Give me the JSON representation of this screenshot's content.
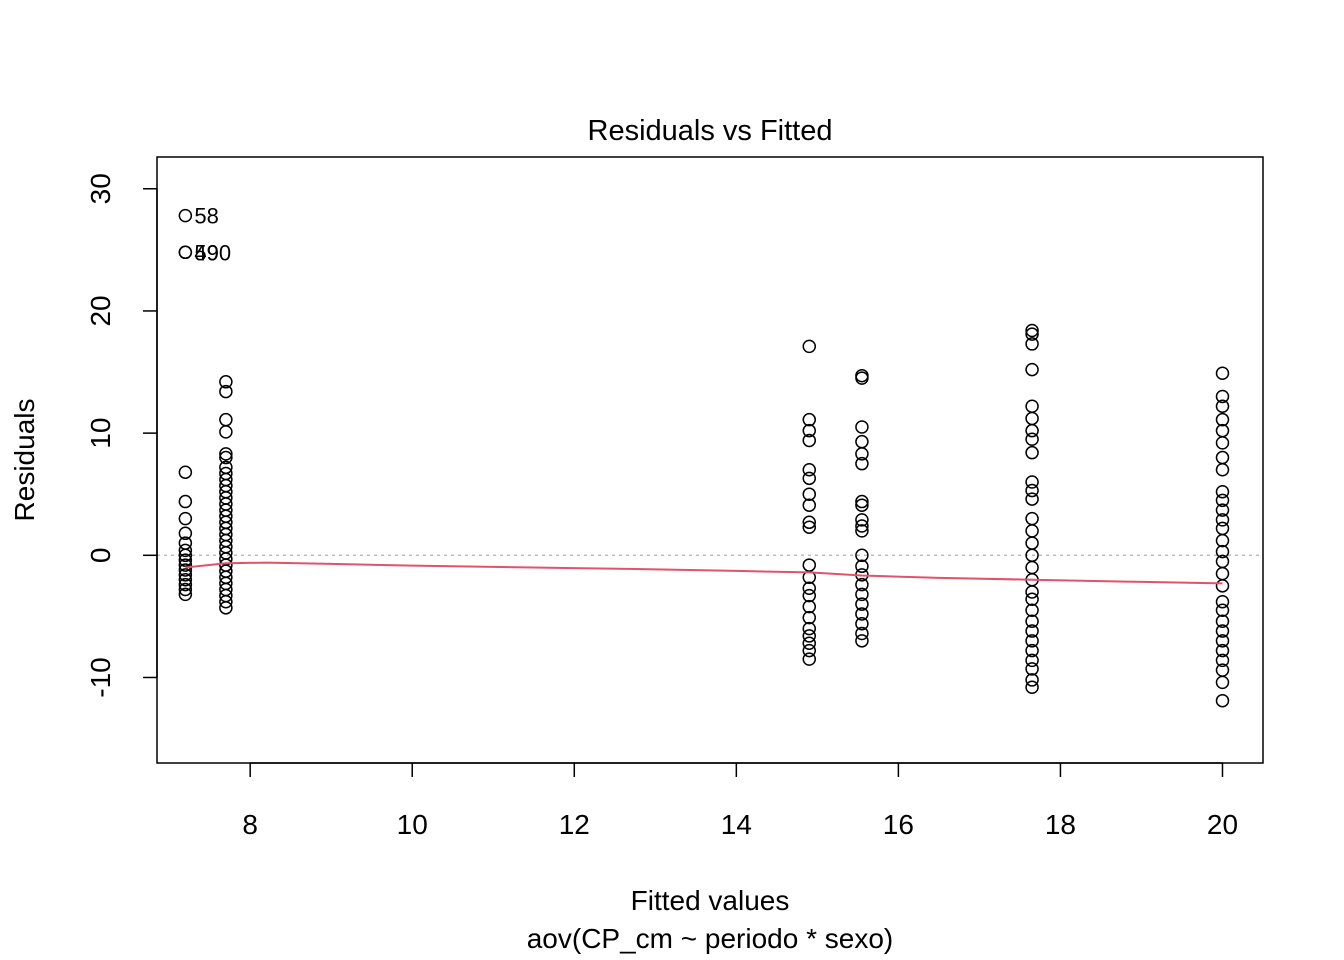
{
  "chart_data": {
    "type": "scatter",
    "title": "Residuals vs Fitted",
    "xlabel": "Fitted values",
    "subtitle": "aov(CP_cm ~ periodo * sexo)",
    "ylabel": "Residuals",
    "xlim": [
      6.85,
      20.5
    ],
    "ylim": [
      -17,
      32.6
    ],
    "x_ticks": [
      8,
      10,
      12,
      14,
      16,
      18,
      20
    ],
    "x_tick_labels": [
      "8",
      "10",
      "12",
      "14",
      "16",
      "18",
      "20"
    ],
    "y_ticks": [
      -10,
      0,
      10,
      20,
      30
    ],
    "y_tick_labels": [
      "-10",
      "0",
      "10",
      "20",
      "30"
    ],
    "reference_line_y": 0,
    "colors": {
      "points": "#000000",
      "smooth": "#DF536B",
      "reference": "#BEBEBE",
      "frame": "#000000"
    },
    "groups": [
      {
        "x": 7.2,
        "residuals": [
          27.8,
          24.8,
          24.8,
          6.8,
          4.4,
          3.0,
          1.8,
          1.0,
          0.4,
          0.0,
          -0.4,
          -0.8,
          -1.2,
          -1.6,
          -2.0,
          -2.4,
          -2.8,
          -3.2
        ]
      },
      {
        "x": 7.7,
        "residuals": [
          14.2,
          13.4,
          11.1,
          10.1,
          8.3,
          8.0,
          7.2,
          6.7,
          6.2,
          5.7,
          5.2,
          4.7,
          4.2,
          3.7,
          3.2,
          2.7,
          2.2,
          1.7,
          1.2,
          0.7,
          0.2,
          -0.3,
          -0.8,
          -1.3,
          -1.8,
          -2.3,
          -2.8,
          -3.3,
          -3.8,
          -4.3
        ]
      },
      {
        "x": 14.9,
        "residuals": [
          17.1,
          11.1,
          10.2,
          9.4,
          7.0,
          6.3,
          5.0,
          4.1,
          2.7,
          2.3,
          -0.8,
          -1.8,
          -2.7,
          -3.3,
          -4.2,
          -5.1,
          -6.0,
          -6.6,
          -7.2,
          -7.8,
          -8.5
        ]
      },
      {
        "x": 15.55,
        "residuals": [
          14.7,
          14.5,
          10.5,
          9.3,
          8.3,
          7.5,
          4.4,
          4.1,
          2.9,
          2.4,
          2.0,
          0.0,
          -0.9,
          -1.6,
          -2.4,
          -3.2,
          -4.0,
          -4.8,
          -5.6,
          -6.4,
          -7.0
        ]
      },
      {
        "x": 17.65,
        "residuals": [
          18.4,
          18.1,
          17.3,
          15.2,
          12.2,
          11.2,
          10.2,
          9.5,
          8.4,
          6.0,
          5.3,
          4.6,
          3.0,
          2.0,
          1.0,
          0.0,
          -1.0,
          -2.0,
          -3.0,
          -3.6,
          -4.5,
          -5.4,
          -6.2,
          -7.0,
          -7.8,
          -8.6,
          -9.3,
          -10.2,
          -10.8
        ]
      },
      {
        "x": 20.0,
        "residuals": [
          14.9,
          13.0,
          12.2,
          11.1,
          10.2,
          9.2,
          8.0,
          7.0,
          5.2,
          4.5,
          3.7,
          2.9,
          2.2,
          1.2,
          0.3,
          -0.5,
          -1.5,
          -2.5,
          -3.8,
          -4.5,
          -5.4,
          -6.2,
          -7.0,
          -7.8,
          -8.6,
          -9.4,
          -10.4,
          -11.9
        ]
      }
    ],
    "smooth_line": {
      "x": [
        7.2,
        7.7,
        8.2,
        9,
        10,
        11,
        12,
        13,
        14,
        14.9,
        15.55,
        16.5,
        17.65,
        18.8,
        20.0
      ],
      "y": [
        -1.0,
        -0.65,
        -0.6,
        -0.7,
        -0.85,
        -0.95,
        -1.05,
        -1.15,
        -1.28,
        -1.4,
        -1.65,
        -1.85,
        -2.0,
        -2.15,
        -2.3
      ]
    },
    "point_labels": [
      {
        "text": "58",
        "x": 7.2,
        "y": 27.8
      },
      {
        "text": "49",
        "x": 7.2,
        "y": 24.8
      },
      {
        "text": "590",
        "x": 7.2,
        "y": 24.8
      }
    ]
  }
}
